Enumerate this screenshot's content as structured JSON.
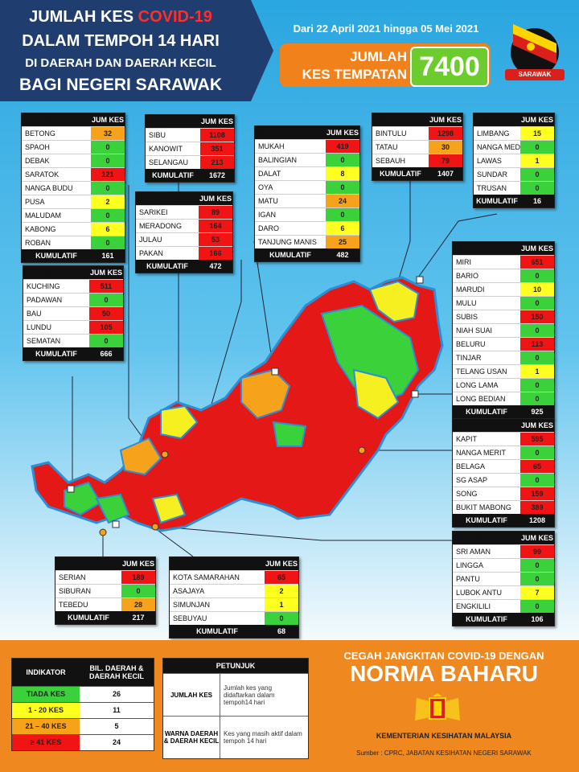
{
  "header": {
    "title_line1_a": "JUMLAH KES ",
    "title_line1_b": "COVID-19",
    "title_line2": "DALAM TEMPOH 14 HARI",
    "title_line3": "DI DAERAH DAN DAERAH KECIL",
    "title_line4": "BAGI NEGERI SARAWAK",
    "date_range": "Dari 22 April 2021 hingga 05 Mei 2021",
    "total_label_1": "JUMLAH",
    "total_label_2": "KES TEMPATAN",
    "total_value": "7400",
    "flag_text": "SARAWAK"
  },
  "colors": {
    "red": "#f01414",
    "orange": "#f7a21b",
    "yellow": "#ffff20",
    "green": "#3ad13a"
  },
  "divisions": [
    {
      "id": "betong",
      "name": "BETONG",
      "col": "JUM KES",
      "rows": [
        {
          "n": "BETONG",
          "v": "32",
          "c": "o"
        },
        {
          "n": "SPAOH",
          "v": "0",
          "c": "g"
        },
        {
          "n": "DEBAK",
          "v": "0",
          "c": "g"
        },
        {
          "n": "SARATOK",
          "v": "121",
          "c": "r"
        },
        {
          "n": "NANGA BUDU",
          "v": "0",
          "c": "g"
        },
        {
          "n": "PUSA",
          "v": "2",
          "c": "y"
        },
        {
          "n": "MALUDAM",
          "v": "0",
          "c": "g"
        },
        {
          "n": "KABONG",
          "v": "6",
          "c": "y"
        },
        {
          "n": "ROBAN",
          "v": "0",
          "c": "g"
        }
      ],
      "foot": "KUMULATIF",
      "total": "161"
    },
    {
      "id": "sibu",
      "name": "SIBU",
      "col": "JUM KES",
      "rows": [
        {
          "n": "SIBU",
          "v": "1108",
          "c": "r"
        },
        {
          "n": "KANOWIT",
          "v": "351",
          "c": "r"
        },
        {
          "n": "SELANGAU",
          "v": "213",
          "c": "r"
        }
      ],
      "foot": "KUMULATIF",
      "total": "1672"
    },
    {
      "id": "sarikei",
      "name": "SARIKEI",
      "col": "JUM KES",
      "rows": [
        {
          "n": "SARIKEI",
          "v": "89",
          "c": "r"
        },
        {
          "n": "MERADONG",
          "v": "164",
          "c": "r"
        },
        {
          "n": "JULAU",
          "v": "53",
          "c": "r"
        },
        {
          "n": "PAKAN",
          "v": "166",
          "c": "r"
        }
      ],
      "foot": "KUMULATIF",
      "total": "472"
    },
    {
      "id": "mukah",
      "name": "MUKAH",
      "col": "JUM KES",
      "rows": [
        {
          "n": "MUKAH",
          "v": "419",
          "c": "r"
        },
        {
          "n": "BALINGIAN",
          "v": "0",
          "c": "g"
        },
        {
          "n": "DALAT",
          "v": "8",
          "c": "y"
        },
        {
          "n": "OYA",
          "v": "0",
          "c": "g"
        },
        {
          "n": "MATU",
          "v": "24",
          "c": "o"
        },
        {
          "n": "IGAN",
          "v": "0",
          "c": "g"
        },
        {
          "n": "DARO",
          "v": "6",
          "c": "y"
        },
        {
          "n": "TANJUNG MANIS",
          "v": "25",
          "c": "o"
        }
      ],
      "foot": "KUMULATIF",
      "total": "482"
    },
    {
      "id": "bintulu",
      "name": "BINTULU",
      "col": "JUM KES",
      "rows": [
        {
          "n": "BINTULU",
          "v": "1298",
          "c": "r"
        },
        {
          "n": "TATAU",
          "v": "30",
          "c": "o"
        },
        {
          "n": "SEBAUH",
          "v": "79",
          "c": "r"
        }
      ],
      "foot": "KUMULATIF",
      "total": "1407"
    },
    {
      "id": "limbang",
      "name": "LIMBANG",
      "col": "JUM KES",
      "rows": [
        {
          "n": "LIMBANG",
          "v": "15",
          "c": "y"
        },
        {
          "n": "NANGA MEDAMIT",
          "v": "0",
          "c": "g"
        },
        {
          "n": "LAWAS",
          "v": "1",
          "c": "y"
        },
        {
          "n": "SUNDAR",
          "v": "0",
          "c": "g"
        },
        {
          "n": "TRUSAN",
          "v": "0",
          "c": "g"
        }
      ],
      "foot": "KUMULATIF",
      "total": "16"
    },
    {
      "id": "kuching",
      "name": "KUCHING",
      "col": "JUM KES",
      "rows": [
        {
          "n": "KUCHING",
          "v": "511",
          "c": "r"
        },
        {
          "n": "PADAWAN",
          "v": "0",
          "c": "g"
        },
        {
          "n": "BAU",
          "v": "50",
          "c": "r"
        },
        {
          "n": "LUNDU",
          "v": "105",
          "c": "r"
        },
        {
          "n": "SEMATAN",
          "v": "0",
          "c": "g"
        }
      ],
      "foot": "KUMULATIF",
      "total": "666"
    },
    {
      "id": "miri",
      "name": "MIRI",
      "col": "JUM KES",
      "rows": [
        {
          "n": "MIRI",
          "v": "651",
          "c": "r"
        },
        {
          "n": "BARIO",
          "v": "0",
          "c": "g"
        },
        {
          "n": "MARUDI",
          "v": "10",
          "c": "y"
        },
        {
          "n": "MULU",
          "v": "0",
          "c": "g"
        },
        {
          "n": "SUBIS",
          "v": "150",
          "c": "r"
        },
        {
          "n": "NIAH SUAI",
          "v": "0",
          "c": "g"
        },
        {
          "n": "BELURU",
          "v": "113",
          "c": "r"
        },
        {
          "n": "TINJAR",
          "v": "0",
          "c": "g"
        },
        {
          "n": "TELANG USAN",
          "v": "1",
          "c": "y"
        },
        {
          "n": "LONG LAMA",
          "v": "0",
          "c": "g"
        },
        {
          "n": "LONG BEDIAN",
          "v": "0",
          "c": "g"
        }
      ],
      "foot": "KUMULATIF",
      "total": "925"
    },
    {
      "id": "kapit",
      "name": "KAPIT",
      "col": "JUM KES",
      "rows": [
        {
          "n": "KAPIT",
          "v": "595",
          "c": "r"
        },
        {
          "n": "NANGA MERIT",
          "v": "0",
          "c": "g"
        },
        {
          "n": "BELAGA",
          "v": "65",
          "c": "r"
        },
        {
          "n": "SG ASAP",
          "v": "0",
          "c": "g"
        },
        {
          "n": "SONG",
          "v": "159",
          "c": "r"
        },
        {
          "n": "BUKIT MABONG",
          "v": "389",
          "c": "r"
        }
      ],
      "foot": "KUMULATIF",
      "total": "1208"
    },
    {
      "id": "sriaman",
      "name": "SRI AMAN",
      "col": "JUM KES",
      "rows": [
        {
          "n": "SRI AMAN",
          "v": "99",
          "c": "r"
        },
        {
          "n": "LINGGA",
          "v": "0",
          "c": "g"
        },
        {
          "n": "PANTU",
          "v": "0",
          "c": "g"
        },
        {
          "n": "LUBOK ANTU",
          "v": "7",
          "c": "y"
        },
        {
          "n": "ENGKILILI",
          "v": "0",
          "c": "g"
        }
      ],
      "foot": "KUMULATIF",
      "total": "106"
    },
    {
      "id": "serian",
      "name": "SERIAN",
      "col": "JUM KES",
      "rows": [
        {
          "n": "SERIAN",
          "v": "189",
          "c": "r"
        },
        {
          "n": "SIBURAN",
          "v": "0",
          "c": "g"
        },
        {
          "n": "TEBEDU",
          "v": "28",
          "c": "o"
        }
      ],
      "foot": "KUMULATIF",
      "total": "217"
    },
    {
      "id": "samarahan",
      "name": "SAMARAHAN",
      "col": "JUM KES",
      "rows": [
        {
          "n": "KOTA SAMARAHAN",
          "v": "65",
          "c": "r"
        },
        {
          "n": "ASAJAYA",
          "v": "2",
          "c": "y"
        },
        {
          "n": "SIMUNJAN",
          "v": "1",
          "c": "y"
        },
        {
          "n": "SEBUYAU",
          "v": "0",
          "c": "g"
        }
      ],
      "foot": "KUMULATIF",
      "total": "68"
    }
  ],
  "indicator": {
    "h1": "INDIKATOR",
    "h2": "BIL. DAERAH & DAERAH KECIL",
    "rows": [
      {
        "label": "TIADA KES",
        "count": "26",
        "c": "g"
      },
      {
        "label": "1 - 20 KES",
        "count": "11",
        "c": "y"
      },
      {
        "label": "21 – 40 KES",
        "count": "5",
        "c": "o"
      },
      {
        "label": "≥ 41 KES",
        "count": "24",
        "c": "r"
      }
    ]
  },
  "petunjuk": {
    "title": "PETUNJUK",
    "r1_label": "JUMLAH KES",
    "r1_desc": "Jumlah kes yang didaftarkan dalam tempoh14 hari",
    "r2_label": "WARNA DAERAH & DAERAH KECIL",
    "r2_desc": "Kes yang masih aktif dalam tempoh 14 hari"
  },
  "footer": {
    "slogan1": "CEGAH JANGKITAN COVID-19 DENGAN",
    "slogan2": "NORMA BAHARU",
    "ministry": "KEMENTERIAN KESIHATAN MALAYSIA",
    "source": "Sumber : CPRC, JABATAN KESIHATAN NEGERI SARAWAK"
  }
}
